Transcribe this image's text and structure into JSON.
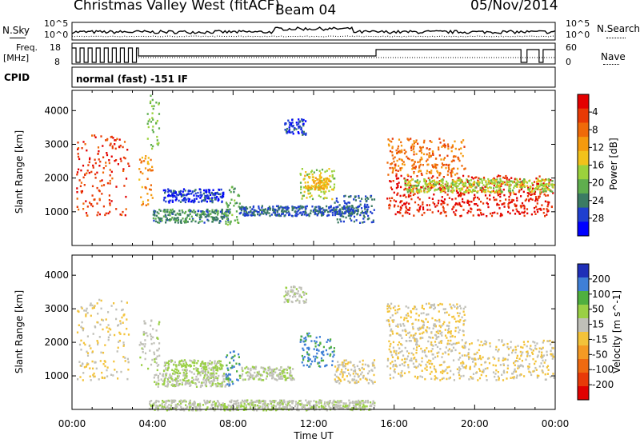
{
  "header": {
    "station": "Christmas Valley West (fitACF)",
    "beam": "Beam 04",
    "date": "05/Nov/2014"
  },
  "strip_labels": {
    "nsky": "N.Sky",
    "nsearch": "N.Search",
    "freq": "Freq.",
    "freq_unit": "[MHz]",
    "nave": "Nave",
    "cpid": "CPID",
    "cpid_value": "normal (fast) -151 IF",
    "nsky_ticks": [
      "10^5",
      "10^0"
    ],
    "nsearch_ticks": [
      "10^5",
      "10^0"
    ],
    "freq_ticks": [
      "18",
      "8"
    ],
    "nave_ticks": [
      "60",
      "0"
    ]
  },
  "colors": {
    "power_scale": [
      "#0000ff",
      "#1f3fcf",
      "#3b7b63",
      "#5fae4e",
      "#9bd23c",
      "#f2c21b",
      "#f59a0e",
      "#ef6a09",
      "#e83a05",
      "#e30000"
    ],
    "velocity_scale": [
      "#1f2fb8",
      "#3f7fd6",
      "#4faf3f",
      "#9ad045",
      "#c0c0b8",
      "#f3c33a",
      "#f59a23",
      "#ef6a10",
      "#e83a08",
      "#e00000"
    ]
  },
  "chart_data": [
    {
      "type": "heatmap",
      "title": "Power",
      "xlabel": "",
      "ylabel": "Slant Range [km]",
      "x_range_hours": [
        0,
        24
      ],
      "ylim": [
        0,
        4600
      ],
      "y_ticks": [
        "1000",
        "2000",
        "3000",
        "4000"
      ],
      "colorbar": {
        "label": "Power [dB]",
        "ticks": [
          "4",
          "8",
          "12",
          "16",
          "20",
          "24",
          "28"
        ],
        "range": [
          0,
          30
        ]
      },
      "echo_regions": [
        {
          "t0": 0.2,
          "t1": 2.8,
          "r0": 900,
          "r1": 3300,
          "value": 26
        },
        {
          "t0": 3.3,
          "t1": 4.0,
          "r0": 1200,
          "r1": 2700,
          "value": 20
        },
        {
          "t0": 3.7,
          "t1": 4.3,
          "r0": 2800,
          "r1": 4500,
          "value": 12
        },
        {
          "t0": 4.0,
          "t1": 7.8,
          "r0": 700,
          "r1": 1100,
          "value": 8
        },
        {
          "t0": 4.5,
          "t1": 7.5,
          "r0": 1300,
          "r1": 1700,
          "value": 4
        },
        {
          "t0": 7.6,
          "t1": 8.3,
          "r0": 600,
          "r1": 1800,
          "value": 10
        },
        {
          "t0": 8.3,
          "t1": 14.0,
          "r0": 900,
          "r1": 1200,
          "value": 6
        },
        {
          "t0": 10.5,
          "t1": 11.6,
          "r0": 3300,
          "r1": 3800,
          "value": 4
        },
        {
          "t0": 11.3,
          "t1": 13.0,
          "r0": 1400,
          "r1": 2300,
          "value": 14
        },
        {
          "t0": 11.5,
          "t1": 12.8,
          "r0": 1700,
          "r1": 2100,
          "value": 18
        },
        {
          "t0": 13.0,
          "t1": 15.0,
          "r0": 700,
          "r1": 1500,
          "value": 6
        },
        {
          "t0": 15.6,
          "t1": 23.9,
          "r0": 900,
          "r1": 2100,
          "value": 27
        },
        {
          "t0": 15.6,
          "t1": 19.5,
          "r0": 2100,
          "r1": 3200,
          "value": 22
        },
        {
          "t0": 16.5,
          "t1": 23.9,
          "r0": 1600,
          "r1": 2000,
          "value": 14
        }
      ]
    },
    {
      "type": "heatmap",
      "title": "Velocity",
      "xlabel": "Time UT",
      "ylabel": "Slant Range [km]",
      "x_range_hours": [
        0,
        24
      ],
      "x_ticks": [
        "00:00",
        "04:00",
        "08:00",
        "12:00",
        "16:00",
        "20:00",
        "00:00"
      ],
      "ylim": [
        0,
        4600
      ],
      "y_ticks": [
        "1000",
        "2000",
        "3000",
        "4000"
      ],
      "colorbar": {
        "label": "Velocity [m s^-1]",
        "ticks": [
          "200",
          "100",
          "50",
          "15",
          "-15",
          "-50",
          "-100",
          "-200"
        ],
        "range": [
          -250,
          250
        ]
      },
      "echo_regions": [
        {
          "t0": 0.2,
          "t1": 2.8,
          "r0": 900,
          "r1": 3300,
          "value": 0
        },
        {
          "t0": 3.3,
          "t1": 4.3,
          "r0": 1200,
          "r1": 2700,
          "value": -30
        },
        {
          "t0": 4.0,
          "t1": 7.8,
          "r0": 700,
          "r1": 1100,
          "value": -40
        },
        {
          "t0": 4.5,
          "t1": 7.5,
          "r0": 1100,
          "r1": 1500,
          "value": -60
        },
        {
          "t0": 7.6,
          "t1": 8.3,
          "r0": 700,
          "r1": 1800,
          "value": -150
        },
        {
          "t0": 8.3,
          "t1": 11.0,
          "r0": 900,
          "r1": 1300,
          "value": -40
        },
        {
          "t0": 10.5,
          "t1": 11.6,
          "r0": 3200,
          "r1": 3700,
          "value": -40
        },
        {
          "t0": 11.3,
          "t1": 13.0,
          "r0": 1300,
          "r1": 2300,
          "value": -160
        },
        {
          "t0": 13.0,
          "t1": 15.0,
          "r0": 800,
          "r1": 1500,
          "value": 0
        },
        {
          "t0": 15.6,
          "t1": 23.9,
          "r0": 900,
          "r1": 2100,
          "value": 0
        },
        {
          "t0": 15.6,
          "t1": 19.5,
          "r0": 2100,
          "r1": 3200,
          "value": 0
        },
        {
          "t0": 3.8,
          "t1": 15.0,
          "r0": 0,
          "r1": 300,
          "value": -40
        }
      ]
    }
  ]
}
